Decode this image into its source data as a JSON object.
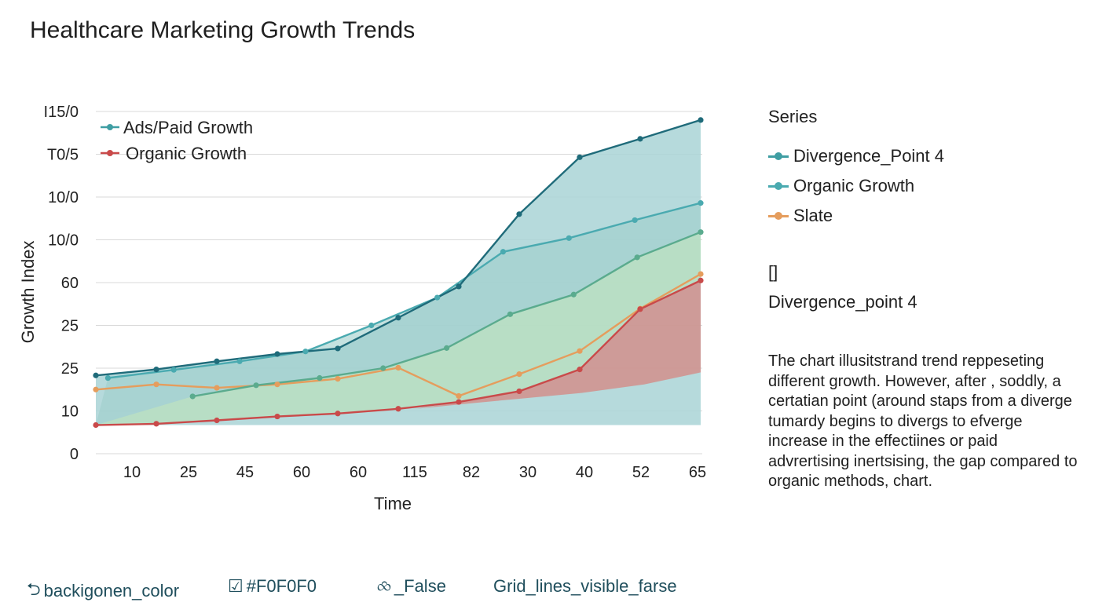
{
  "title": "Healthcare Marketing Growth Trends",
  "chart_data": {
    "type": "area",
    "title": "Healthcare Marketing Growth Trends",
    "xlabel": "Time",
    "ylabel": "Growth Index",
    "x_ticks": [
      "10",
      "25",
      "45",
      "60",
      "60",
      "115",
      "82",
      "30",
      "40",
      "52",
      "65"
    ],
    "y_ticks": [
      "0",
      "10",
      "25",
      "25",
      "60",
      "10/0",
      "10/0",
      "T0/5",
      "I15/0"
    ],
    "ylim": [
      0,
      8
    ],
    "grid": true,
    "legend_position": "top-left",
    "legend": [
      {
        "label": "Ads/Paid Growth",
        "color": "#3f9ea3"
      },
      {
        "label": "Organic Growth",
        "color": "#c94a4a"
      }
    ],
    "series": [
      {
        "name": "Ads/Paid Growth",
        "color": "#1f6b7a",
        "values": [
          1.83,
          1.97,
          2.16,
          2.33,
          2.46,
          3.18,
          3.91,
          5.6,
          6.93,
          7.36,
          7.8
        ]
      },
      {
        "name": "Organic Growth",
        "color": "#4aaab0",
        "values": [
          1.77,
          1.96,
          2.16,
          2.39,
          3.0,
          3.65,
          4.72,
          5.04,
          5.46,
          5.86
        ],
        "x_start_index": 0.2
      },
      {
        "name": "Slate",
        "color": "#9ccf9e",
        "values": [
          1.34,
          1.6,
          1.77,
          2.0,
          2.47,
          3.26,
          3.72,
          4.59,
          5.18
        ],
        "x_start_index": 1.6
      }
    ],
    "lower_lines": [
      {
        "color": "#e59d5d",
        "values": [
          1.5,
          1.62,
          1.54,
          1.62,
          1.75,
          2.01,
          1.35,
          1.86,
          2.4,
          3.39,
          4.2
        ]
      },
      {
        "color": "#c94a4a",
        "values": [
          0.67,
          0.7,
          0.78,
          0.87,
          0.94,
          1.05,
          1.21,
          1.46,
          1.97,
          3.38,
          4.05
        ]
      }
    ]
  },
  "side_legend": {
    "title": "Series",
    "items": [
      {
        "label": "Divergence_Point 4",
        "color": "#3f9ea3"
      },
      {
        "label": "Organic Growth",
        "color": "#4aaab0"
      },
      {
        "label": "Slate",
        "color": "#e59d5d"
      }
    ]
  },
  "bracket_text": "[]",
  "divergence_label": "Divergence_point 4",
  "description": "The chart illusitstrand trend reppeseting different growth. However, after , soddly, a certatian point (around staps from a diverge tumardy begins to divergs to efverge increase in the effectiines or paid advrertising inertsising, the gap compared to organic methods, chart.",
  "footer": {
    "items": [
      {
        "icon": "⮌",
        "icon_name": "checkbox-icon",
        "label": "backigonen_color"
      },
      {
        "icon": "☑",
        "icon_name": "checked-box-icon",
        "label": "#F0F0F0"
      },
      {
        "icon": "⧝",
        "icon_name": "dashed-circle-icon",
        "label": "_False"
      },
      {
        "icon": "",
        "icon_name": "",
        "label": "Grid_lines_visible_farse"
      }
    ]
  }
}
